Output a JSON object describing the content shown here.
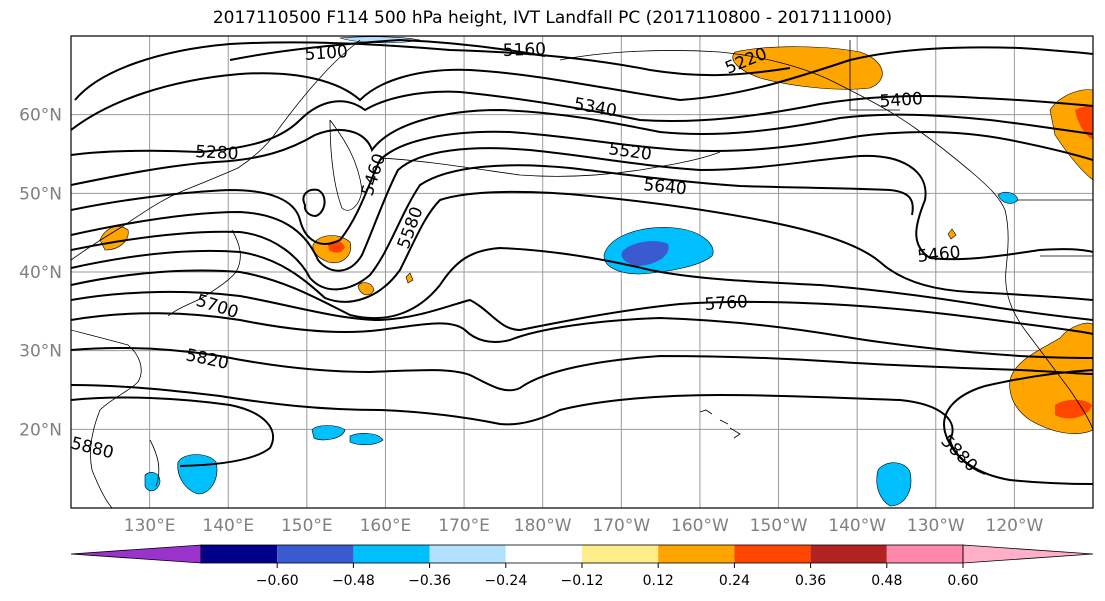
{
  "title": "2017110500 F114 500 hPa height, IVT Landfall PC (2017110800 - 2017111000)",
  "map": {
    "lon_range": [
      "120°E",
      "110°W"
    ],
    "lat_range": [
      10,
      70
    ],
    "lon_ticks": [
      "130°E",
      "140°E",
      "150°E",
      "160°E",
      "170°E",
      "180°W",
      "170°W",
      "160°W",
      "150°W",
      "140°W",
      "130°W",
      "120°W"
    ],
    "lat_ticks": [
      "20°N",
      "30°N",
      "40°N",
      "50°N",
      "60°N"
    ],
    "grid": true,
    "tick_label_color": "#808080"
  },
  "contours": {
    "field": "500 hPa height",
    "labels": [
      "5100",
      "5160",
      "5220",
      "5280",
      "5340",
      "5400",
      "5460",
      "5520",
      "5580",
      "5640",
      "5700",
      "5760",
      "5820",
      "5880"
    ]
  },
  "colorbar": {
    "ticks": [
      "−0.60",
      "−0.48",
      "−0.36",
      "−0.24",
      "−0.12",
      "0.12",
      "0.24",
      "0.36",
      "0.48",
      "0.60"
    ],
    "colors": [
      "#9933cc",
      "#00008b",
      "#3a5bd0",
      "#00bfff",
      "#b0e2ff",
      "#ffffff",
      "#ffec8b",
      "#ffa500",
      "#ff4500",
      "#b22222",
      "#ff88aa",
      "#ffb0c8"
    ]
  }
}
